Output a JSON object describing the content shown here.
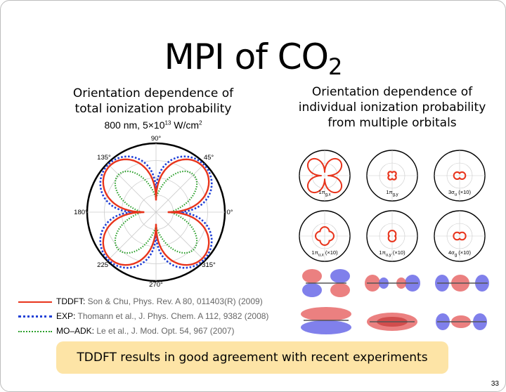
{
  "slide": {
    "title_main": "MPI of CO",
    "title_sub": "2",
    "left_heading_1": "Orientation dependence of",
    "left_heading_2": "total ionization probability",
    "conditions_pre": "800 nm, 5×10",
    "conditions_exp": "13",
    "conditions_post": " W/cm",
    "conditions_exp2": "2",
    "right_heading_1": "Orientation dependence of",
    "right_heading_2": "individual ionization probability",
    "right_heading_3": "from multiple orbitals",
    "banner": "TDDFT results in good agreement with recent experiments",
    "page_number": "33"
  },
  "polar_plot": {
    "angle_labels": [
      "90°",
      "45°",
      "0°",
      "315°",
      "270°",
      "225°",
      "180°",
      "135°"
    ]
  },
  "orbital_panels": [
    {
      "base": "1π",
      "sub": "g,x",
      "suffix": ""
    },
    {
      "base": "1π",
      "sub": "g,y",
      "suffix": ""
    },
    {
      "base": "3σ",
      "sub": "u",
      "suffix": " (×10)"
    },
    {
      "base": "1π",
      "sub": "u,x",
      "suffix": " (×10)"
    },
    {
      "base": "1π",
      "sub": "u,y",
      "suffix": " (×10)"
    },
    {
      "base": "4σ",
      "sub": "g",
      "suffix": " (×10)"
    }
  ],
  "legend": [
    {
      "label": "TDDFT:",
      "ref": "Son & Chu, Phys. Rev. A 80, 011403(R) (2009)",
      "color": "#e8341c"
    },
    {
      "label": "EXP:",
      "ref": "Thomann et al., J. Phys. Chem. A 112, 9382 (2008)",
      "color": "#1f3fd6"
    },
    {
      "label": "MO–ADK:",
      "ref": "Le et al., J. Mod. Opt. 54, 967 (2007)",
      "color": "#2ca02c"
    }
  ],
  "colors": {
    "tddft": "#e8341c",
    "exp": "#1f3fd6",
    "moadk": "#2ca02c",
    "banner": "#fde4a6"
  }
}
